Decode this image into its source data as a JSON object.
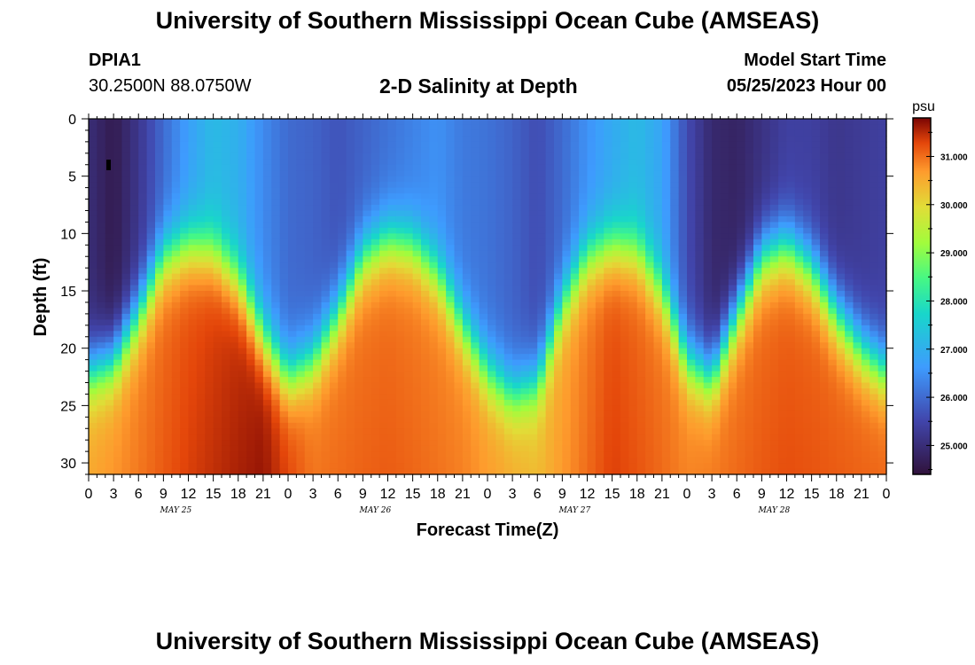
{
  "header": {
    "title": "University of Southern Mississippi Ocean Cube (AMSEAS)",
    "station_id": "DPIA1",
    "location": "30.2500N  88.0750W",
    "start_label": "Model Start Time",
    "start_value": "05/25/2023 Hour 00"
  },
  "footer": {
    "title": "University of Southern Mississippi Ocean Cube (AMSEAS)"
  },
  "chart_data": {
    "type": "heatmap",
    "title": "2-D Salinity at Depth",
    "xlabel": "Forecast Time(Z)",
    "ylabel": "Depth (ft)",
    "xlim_hours": [
      0,
      96
    ],
    "ylim": [
      0,
      31
    ],
    "x_tick_labels": [
      "0",
      "3",
      "6",
      "9",
      "12",
      "15",
      "18",
      "21",
      "0",
      "3",
      "6",
      "9",
      "12",
      "15",
      "18",
      "21",
      "0",
      "3",
      "6",
      "9",
      "12",
      "15",
      "18",
      "21",
      "0",
      "3",
      "6",
      "9",
      "12",
      "15",
      "18",
      "21",
      "0"
    ],
    "y_ticks": [
      0,
      5,
      10,
      15,
      20,
      25,
      30
    ],
    "day_labels": [
      "MAY 25",
      "MAY 26",
      "MAY 27",
      "MAY 28"
    ],
    "colorbar": {
      "unit": "psu",
      "range": [
        24.4,
        31.8
      ],
      "ticks": [
        "25.000",
        "26.000",
        "27.000",
        "28.000",
        "29.000",
        "30.000",
        "31.000"
      ],
      "tick_values": [
        25,
        26,
        27,
        28,
        29,
        30,
        31
      ]
    },
    "halocline_depth_ft": {
      "hours": [
        0,
        3,
        6,
        9,
        12,
        15,
        18,
        21,
        24,
        27,
        30,
        33,
        36,
        39,
        42,
        45,
        48,
        51,
        54,
        57,
        60,
        63,
        66,
        69,
        72,
        75,
        78,
        81,
        84,
        87,
        90,
        93,
        96
      ],
      "depth": [
        22,
        21,
        17,
        12,
        11,
        11.5,
        14,
        19,
        22.5,
        21,
        17,
        12,
        10.5,
        11,
        13.5,
        18,
        22,
        24,
        23,
        16,
        12,
        11,
        11.5,
        15,
        21,
        22.5,
        17,
        12,
        11,
        13,
        17,
        20,
        22
      ]
    },
    "surface_salinity_psu": {
      "hours": [
        0,
        3,
        6,
        9,
        12,
        15,
        18,
        21,
        24,
        27,
        30,
        33,
        36,
        39,
        42,
        45,
        48,
        51,
        54,
        57,
        60,
        63,
        66,
        69,
        72,
        75,
        78,
        81,
        84,
        87,
        90,
        93,
        96
      ],
      "value": [
        25.0,
        24.6,
        25.2,
        26.0,
        26.7,
        27.2,
        27.0,
        26.4,
        26.0,
        25.9,
        25.7,
        25.9,
        26.1,
        26.3,
        26.5,
        26.2,
        26.1,
        25.9,
        25.6,
        26.0,
        26.5,
        26.9,
        27.2,
        26.8,
        25.6,
        24.9,
        24.8,
        25.1,
        25.4,
        25.4,
        25.2,
        25.3,
        25.4
      ]
    },
    "deep_salinity_psu": {
      "hours": [
        0,
        12,
        21,
        27,
        36,
        45,
        54,
        63,
        72,
        84,
        96
      ],
      "value": [
        30.5,
        31.2,
        31.6,
        30.9,
        31.0,
        30.8,
        30.3,
        31.2,
        30.8,
        31.1,
        31.0
      ]
    }
  }
}
